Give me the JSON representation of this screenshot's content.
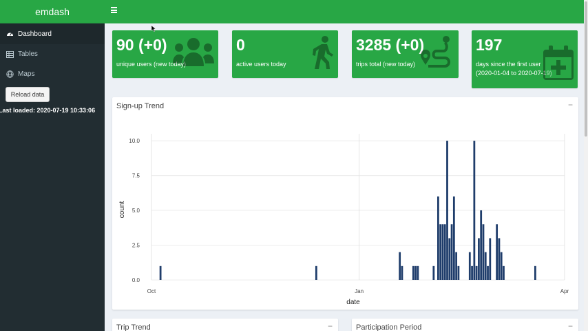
{
  "brand": "emdash",
  "sidebar": {
    "items": [
      {
        "label": "Dashboard",
        "icon": "tachometer-icon"
      },
      {
        "label": "Tables",
        "icon": "table-icon"
      },
      {
        "label": "Maps",
        "icon": "globe-icon"
      }
    ],
    "reload_label": "Reload data",
    "last_loaded": "Last loaded: 2020-07-19 10:33:06"
  },
  "value_boxes": [
    {
      "value": "90 (+0)",
      "label": "unique users (new today)",
      "icon": "users-icon"
    },
    {
      "value": "0",
      "label": "active users today",
      "icon": "walking-icon"
    },
    {
      "value": "3285 (+0)",
      "label": "trips total (new today)",
      "icon": "route-icon"
    },
    {
      "value": "197",
      "label": "days since the first user",
      "label2": "(2020-01-04 to 2020-07-19)",
      "icon": "calendar-plus-icon"
    }
  ],
  "signup_box": {
    "title": "Sign-up Trend",
    "collapse": "−"
  },
  "trip_box": {
    "title": "Trip Trend",
    "collapse": "−"
  },
  "participation_box": {
    "title": "Participation Period",
    "collapse": "−"
  },
  "colors": {
    "accent": "#28a745",
    "bar": "#1f3d6b",
    "sidebar": "#222d32"
  },
  "chart_data": {
    "type": "bar",
    "title": "",
    "xlabel": "date",
    "ylabel": "count",
    "ylim": [
      0,
      10.5
    ],
    "xlim": [
      "2019-10-01",
      "2020-04-01"
    ],
    "x_ticks": [
      {
        "date": "2019-10-01",
        "label": "Oct"
      },
      {
        "date": "2020-01-01",
        "label": "Jan"
      },
      {
        "date": "2020-04-01",
        "label": "Apr"
      }
    ],
    "y_ticks": [
      0,
      2.5,
      5,
      7.5,
      10
    ],
    "y_tick_labels": [
      "0.0",
      "2.5",
      "5.0",
      "7.5",
      "10.0"
    ],
    "grid": true,
    "points": [
      {
        "x": "2019-10-05",
        "y": 1
      },
      {
        "x": "2019-12-13",
        "y": 1
      },
      {
        "x": "2020-01-19",
        "y": 2
      },
      {
        "x": "2020-01-20",
        "y": 1
      },
      {
        "x": "2020-01-25",
        "y": 1
      },
      {
        "x": "2020-01-26",
        "y": 1
      },
      {
        "x": "2020-01-27",
        "y": 1
      },
      {
        "x": "2020-02-03",
        "y": 1
      },
      {
        "x": "2020-02-05",
        "y": 6
      },
      {
        "x": "2020-02-06",
        "y": 4
      },
      {
        "x": "2020-02-07",
        "y": 4
      },
      {
        "x": "2020-02-08",
        "y": 4
      },
      {
        "x": "2020-02-09",
        "y": 10
      },
      {
        "x": "2020-02-10",
        "y": 3
      },
      {
        "x": "2020-02-11",
        "y": 4
      },
      {
        "x": "2020-02-12",
        "y": 6
      },
      {
        "x": "2020-02-13",
        "y": 2
      },
      {
        "x": "2020-02-14",
        "y": 1
      },
      {
        "x": "2020-02-19",
        "y": 2
      },
      {
        "x": "2020-02-20",
        "y": 1
      },
      {
        "x": "2020-02-21",
        "y": 10
      },
      {
        "x": "2020-02-22",
        "y": 1
      },
      {
        "x": "2020-02-23",
        "y": 3
      },
      {
        "x": "2020-02-24",
        "y": 5
      },
      {
        "x": "2020-02-25",
        "y": 4
      },
      {
        "x": "2020-02-26",
        "y": 2
      },
      {
        "x": "2020-02-27",
        "y": 1
      },
      {
        "x": "2020-02-28",
        "y": 3
      },
      {
        "x": "2020-03-02",
        "y": 4
      },
      {
        "x": "2020-03-03",
        "y": 3
      },
      {
        "x": "2020-03-04",
        "y": 2
      },
      {
        "x": "2020-03-05",
        "y": 1
      },
      {
        "x": "2020-03-19",
        "y": 1
      }
    ]
  }
}
